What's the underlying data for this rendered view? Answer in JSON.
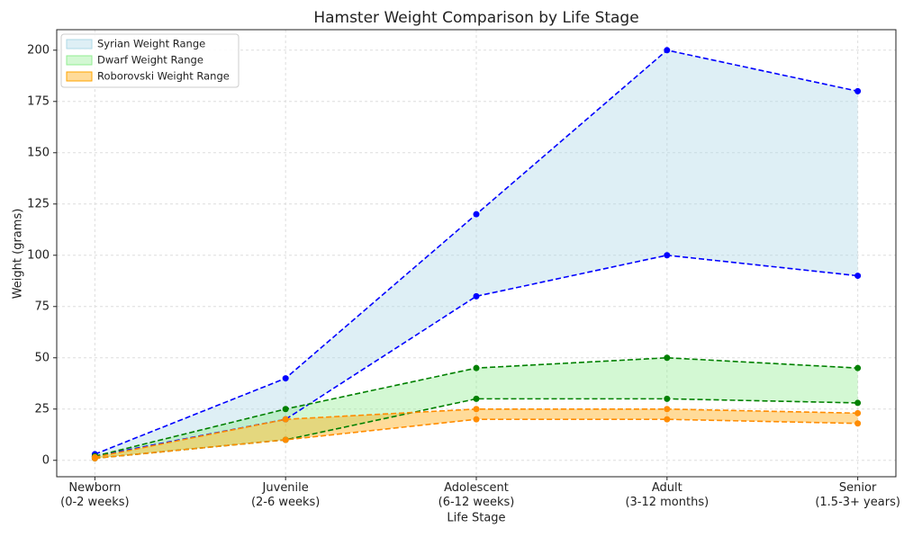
{
  "chart_data": {
    "type": "range_area",
    "title": "Hamster Weight Comparison by Life Stage",
    "x_label": "Life Stage",
    "y_label": "Weight (grams)",
    "categories": [
      "Newborn\n(0-2 weeks)",
      "Juvenile\n(2-6 weeks)",
      "Adolescent\n(6-12 weeks)",
      "Adult\n(3-12 months)",
      "Senior\n(1.5-3+ years)"
    ],
    "series": [
      {
        "name": "Syrian Weight Range",
        "color": "#add8e6",
        "line_color": "#0000ff",
        "low": [
          2,
          20,
          80,
          100,
          90
        ],
        "high": [
          3,
          40,
          120,
          200,
          180
        ]
      },
      {
        "name": "Dwarf Weight Range",
        "color": "#90ee90",
        "line_color": "#008000",
        "low": [
          1,
          10,
          30,
          30,
          28
        ],
        "high": [
          2,
          25,
          45,
          50,
          45
        ]
      },
      {
        "name": "Roborovski Weight Range",
        "color": "#ffa500",
        "line_color": "#ff8c00",
        "low": [
          1,
          10,
          20,
          20,
          18
        ],
        "high": [
          1.5,
          20,
          25,
          25,
          23
        ]
      }
    ],
    "ylim": [
      -8,
      210
    ],
    "yticks": [
      0,
      25,
      50,
      75,
      100,
      125,
      150,
      175,
      200
    ],
    "grid": true,
    "legend": "upper left"
  }
}
